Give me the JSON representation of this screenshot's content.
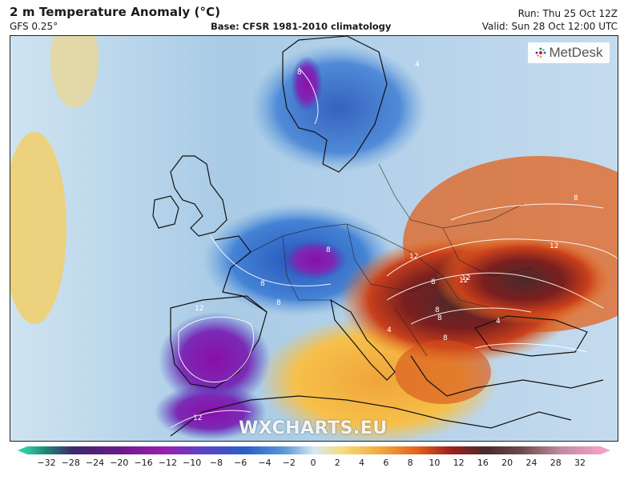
{
  "header": {
    "title": "2 m Temperature Anomaly (°C)",
    "model": "GFS 0.25°",
    "base": "Base: CFSR 1981-2010 climatology",
    "run": "Run: Thu 25 Oct 12Z",
    "valid": "Valid: Sun 28 Oct 12:00 UTC"
  },
  "map": {
    "logo_text": "MetDesk",
    "watermark": "WXCHARTS.EU",
    "contour_labels": [
      "8",
      "4",
      "8",
      "12",
      "12",
      "8",
      "12",
      "8",
      "8",
      "12",
      "8",
      "12",
      "8",
      "4",
      "8",
      "12",
      "8",
      "4"
    ]
  },
  "colorbar": {
    "ticks": [
      "−32",
      "−28",
      "−24",
      "−20",
      "−16",
      "−12",
      "−10",
      "−8",
      "−6",
      "−4",
      "−2",
      "0",
      "2",
      "4",
      "6",
      "8",
      "10",
      "12",
      "16",
      "20",
      "24",
      "28",
      "32"
    ],
    "colors": {
      "min_arrow": "#2ec9a0",
      "max_arrow": "#f2a0c8"
    }
  }
}
